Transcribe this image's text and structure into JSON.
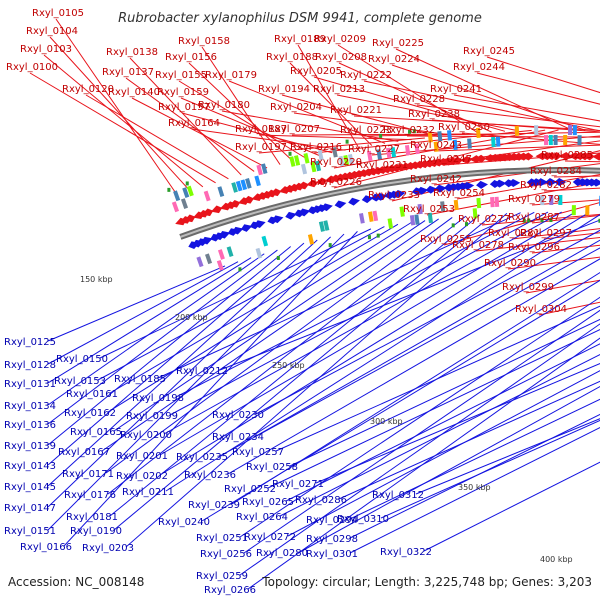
{
  "title": "Rubrobacter xylanophilus DSM 9941, complete genome",
  "accession": "Accession: NC_008148",
  "summary": "Topology: circular; Length: 3,225,748 bp; Genes: 3,203",
  "ticks": [
    "150 kbp",
    "200 kbp",
    "250 kbp",
    "300 kbp",
    "350 kbp",
    "400 kbp"
  ],
  "forward_genes": [
    "Rxyl_0105",
    "Rxyl_0104",
    "Rxyl_0103",
    "Rxyl_0100",
    "Rxyl_0120",
    "Rxyl_0138",
    "Rxyl_0137",
    "Rxyl_0140",
    "Rxyl_0158",
    "Rxyl_0156",
    "Rxyl_0155",
    "Rxyl_0159",
    "Rxyl_0157",
    "Rxyl_0164",
    "Rxyl_0189",
    "Rxyl_0188",
    "Rxyl_0179",
    "Rxyl_0180",
    "Rxyl_0187",
    "Rxyl_0197",
    "Rxyl_0194",
    "Rxyl_0204",
    "Rxyl_0207",
    "Rxyl_0209",
    "Rxyl_0208",
    "Rxyl_0205",
    "Rxyl_0213",
    "Rxyl_0216",
    "Rxyl_0220",
    "Rxyl_0226",
    "Rxyl_0225",
    "Rxyl_0224",
    "Rxyl_0222",
    "Rxyl_0221",
    "Rxyl_0223",
    "Rxyl_0227",
    "Rxyl_0231",
    "Rxyl_0233",
    "Rxyl_0228",
    "Rxyl_0232",
    "Rxyl_0238",
    "Rxyl_0243",
    "Rxyl_0247",
    "Rxyl_0242",
    "Rxyl_0254",
    "Rxyl_0253",
    "Rxyl_0255",
    "Rxyl_0245",
    "Rxyl_0244",
    "Rxyl_0241",
    "Rxyl_0250",
    "Rxyl_0285",
    "Rxyl_0284",
    "Rxyl_0282",
    "Rxyl_0279",
    "Rxyl_0287",
    "Rxyl_0277",
    "Rxyl_0281",
    "Rxyl_0297",
    "Rxyl_0278",
    "Rxyl_0296",
    "Rxyl_0290",
    "Rxyl_0299",
    "Rxyl_0304"
  ],
  "reverse_genes": [
    "Rxyl_0125",
    "Rxyl_0128",
    "Rxyl_0131",
    "Rxyl_0134",
    "Rxyl_0136",
    "Rxyl_0139",
    "Rxyl_0143",
    "Rxyl_0145",
    "Rxyl_0147",
    "Rxyl_0151",
    "Rxyl_0166",
    "Rxyl_0150",
    "Rxyl_0153",
    "Rxyl_0161",
    "Rxyl_0162",
    "Rxyl_0165",
    "Rxyl_0167",
    "Rxyl_0171",
    "Rxyl_0176",
    "Rxyl_0181",
    "Rxyl_0190",
    "Rxyl_0203",
    "Rxyl_0185",
    "Rxyl_0198",
    "Rxyl_0199",
    "Rxyl_0200",
    "Rxyl_0201",
    "Rxyl_0202",
    "Rxyl_0211",
    "Rxyl_0212",
    "Rxyl_0230",
    "Rxyl_0234",
    "Rxyl_0235",
    "Rxyl_0236",
    "Rxyl_0239",
    "Rxyl_0240",
    "Rxyl_0251",
    "Rxyl_0256",
    "Rxyl_0259",
    "Rxyl_0266",
    "Rxyl_0257",
    "Rxyl_0258",
    "Rxyl_0252",
    "Rxyl_0265",
    "Rxyl_0264",
    "Rxyl_0272",
    "Rxyl_0280",
    "Rxyl_0271",
    "Rxyl_0286",
    "Rxyl_0294",
    "Rxyl_0298",
    "Rxyl_0301",
    "Rxyl_0310",
    "Rxyl_0312",
    "Rxyl_0322"
  ],
  "colors": {
    "forward": "#e8141b",
    "reverse": "#1414e0",
    "forward_label": "#c00000",
    "reverse_label": "#0000b0",
    "backbone": "#888888"
  }
}
